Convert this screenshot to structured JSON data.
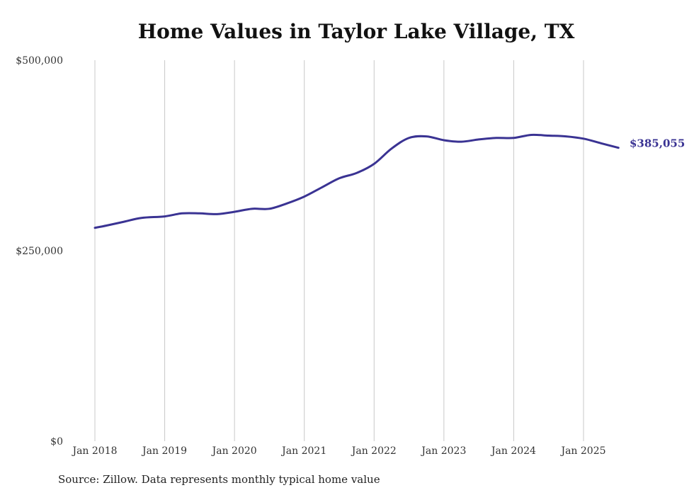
{
  "chart_data": {
    "type": "line",
    "title": "Home Values in Taylor Lake Village, TX",
    "source": "Source: Zillow. Data represents monthly typical home value",
    "xlabel": "",
    "ylabel": "",
    "x_ticks": [
      "Jan 2018",
      "Jan 2019",
      "Jan 2020",
      "Jan 2021",
      "Jan 2022",
      "Jan 2023",
      "Jan 2024",
      "Jan 2025"
    ],
    "y_ticks": [
      "$0",
      "$250,000",
      "$500,000"
    ],
    "ylim": [
      0,
      500000
    ],
    "grid": "vertical",
    "end_label": "$385,055",
    "series": [
      {
        "color": "#3a3393",
        "points": [
          {
            "x": "2018-01",
            "y": 280000
          },
          {
            "x": "2018-03",
            "y": 283000
          },
          {
            "x": "2018-06",
            "y": 288000
          },
          {
            "x": "2018-09",
            "y": 293000
          },
          {
            "x": "2019-01",
            "y": 295000
          },
          {
            "x": "2019-04",
            "y": 299000
          },
          {
            "x": "2019-07",
            "y": 299000
          },
          {
            "x": "2019-10",
            "y": 298000
          },
          {
            "x": "2020-01",
            "y": 301000
          },
          {
            "x": "2020-04",
            "y": 305000
          },
          {
            "x": "2020-07",
            "y": 305000
          },
          {
            "x": "2020-10",
            "y": 312000
          },
          {
            "x": "2021-01",
            "y": 321000
          },
          {
            "x": "2021-04",
            "y": 333000
          },
          {
            "x": "2021-07",
            "y": 345000
          },
          {
            "x": "2021-10",
            "y": 352000
          },
          {
            "x": "2022-01",
            "y": 364000
          },
          {
            "x": "2022-04",
            "y": 384000
          },
          {
            "x": "2022-07",
            "y": 398000
          },
          {
            "x": "2022-10",
            "y": 400000
          },
          {
            "x": "2023-01",
            "y": 395000
          },
          {
            "x": "2023-04",
            "y": 393000
          },
          {
            "x": "2023-07",
            "y": 396000
          },
          {
            "x": "2023-10",
            "y": 398000
          },
          {
            "x": "2024-01",
            "y": 398000
          },
          {
            "x": "2024-04",
            "y": 402000
          },
          {
            "x": "2024-07",
            "y": 401000
          },
          {
            "x": "2024-10",
            "y": 400000
          },
          {
            "x": "2025-01",
            "y": 397000
          },
          {
            "x": "2025-04",
            "y": 391000
          },
          {
            "x": "2025-07",
            "y": 385055
          }
        ]
      }
    ]
  }
}
